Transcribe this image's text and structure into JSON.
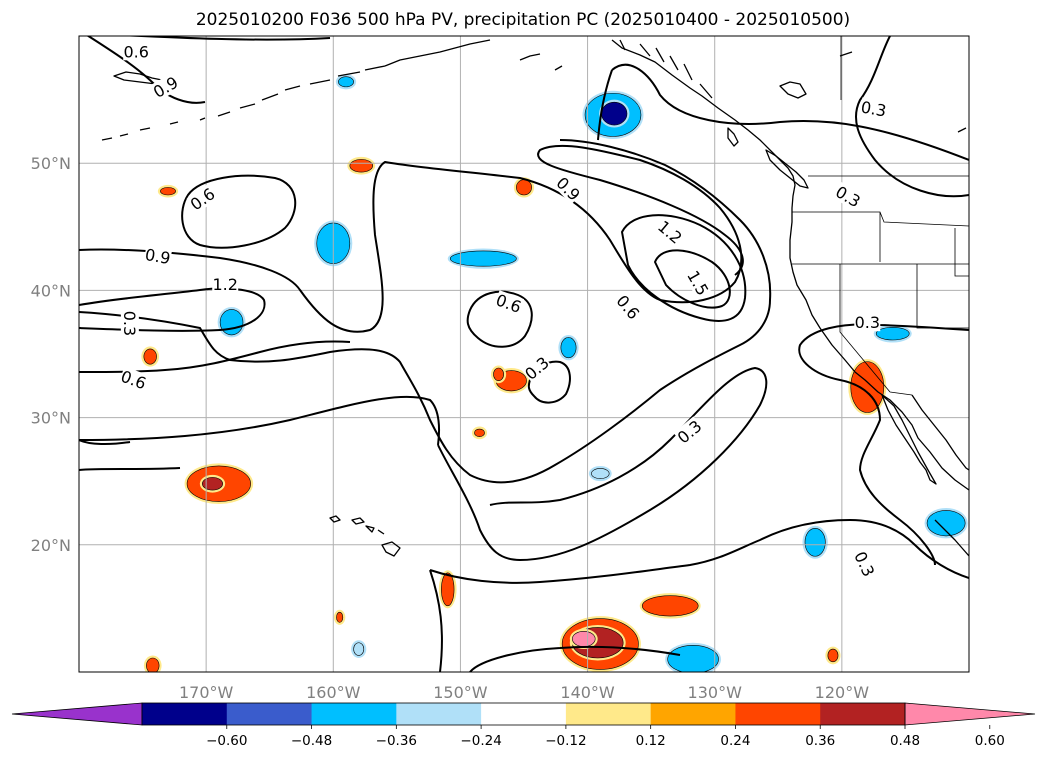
{
  "title": "2025010200 F036 500 hPa PV, precipitation PC (2025010400 - 2025010500)",
  "map": {
    "lon_range": [
      -180,
      -110
    ],
    "lat_range": [
      10,
      60
    ],
    "lon_ticks": [
      {
        "value": -170,
        "label": "170°W"
      },
      {
        "value": -160,
        "label": "160°W"
      },
      {
        "value": -150,
        "label": "150°W"
      },
      {
        "value": -140,
        "label": "140°W"
      },
      {
        "value": -130,
        "label": "130°W"
      },
      {
        "value": -120,
        "label": "120°W"
      }
    ],
    "lat_ticks": [
      {
        "value": 20,
        "label": "20°N"
      },
      {
        "value": 30,
        "label": "30°N"
      },
      {
        "value": 40,
        "label": "40°N"
      },
      {
        "value": 50,
        "label": "50°N"
      }
    ],
    "grid": true
  },
  "contour_labels": [
    {
      "text": "0.6",
      "lon": -175.5,
      "lat": 58.8,
      "rot": 0
    },
    {
      "text": "0.9",
      "lon": -173.2,
      "lat": 56.0,
      "rot": -30
    },
    {
      "text": "0.3",
      "lon": -117.5,
      "lat": 54.3,
      "rot": 10
    },
    {
      "text": "0.6",
      "lon": -170.3,
      "lat": 47.2,
      "rot": -35
    },
    {
      "text": "0.9",
      "lon": -141.5,
      "lat": 48.0,
      "rot": 45
    },
    {
      "text": "0.3",
      "lon": -119.5,
      "lat": 47.4,
      "rot": 30
    },
    {
      "text": "1.2",
      "lon": -133.5,
      "lat": 44.6,
      "rot": 40
    },
    {
      "text": "0.9",
      "lon": -173.8,
      "lat": 42.7,
      "rot": 10
    },
    {
      "text": "1.2",
      "lon": -168.5,
      "lat": 40.5,
      "rot": 0
    },
    {
      "text": "1.5",
      "lon": -131.3,
      "lat": 40.6,
      "rot": 60
    },
    {
      "text": "0.6",
      "lon": -146.2,
      "lat": 39.0,
      "rot": 20
    },
    {
      "text": "0.6",
      "lon": -136.8,
      "lat": 38.7,
      "rot": 50
    },
    {
      "text": "0.3",
      "lon": -176.0,
      "lat": 37.4,
      "rot": 90
    },
    {
      "text": "0.3",
      "lon": -118.0,
      "lat": 37.5,
      "rot": 0
    },
    {
      "text": "0.3",
      "lon": -144.0,
      "lat": 33.9,
      "rot": -40
    },
    {
      "text": "0.6",
      "lon": -175.7,
      "lat": 33.0,
      "rot": 20
    },
    {
      "text": "0.3",
      "lon": -132.0,
      "lat": 28.9,
      "rot": -40
    },
    {
      "text": "0.3",
      "lon": -118.2,
      "lat": 18.5,
      "rot": 65
    }
  ],
  "colorbar": {
    "levels": [
      -0.6,
      -0.48,
      -0.36,
      -0.24,
      -0.12,
      0.12,
      0.24,
      0.36,
      0.48,
      0.6
    ],
    "tick_labels": [
      "−0.60",
      "−0.48",
      "−0.36",
      "−0.24",
      "−0.12",
      "0.12",
      "0.24",
      "0.36",
      "0.48",
      "0.60"
    ],
    "colors": [
      "#9932cc",
      "#00008b",
      "#3a5ccc",
      "#00bfff",
      "#b0e0f8",
      "#ffffff",
      "#ffe98a",
      "#ffa500",
      "#ff4500",
      "#b22222",
      "#ff88aa"
    ],
    "extend": "both"
  },
  "precip_blobs": [
    {
      "lon": -168.0,
      "lat": 37.5,
      "rx": 0.9,
      "ry": 1.0,
      "level": -0.36
    },
    {
      "lon": -160.0,
      "lat": 43.7,
      "rx": 1.3,
      "ry": 1.6,
      "level": -0.36
    },
    {
      "lon": -138.0,
      "lat": 53.8,
      "rx": 2.2,
      "ry": 1.7,
      "level": -0.36
    },
    {
      "lon": -137.9,
      "lat": 53.9,
      "rx": 1.0,
      "ry": 0.9,
      "level": -0.6
    },
    {
      "lon": -159.0,
      "lat": 56.4,
      "rx": 0.6,
      "ry": 0.4,
      "level": -0.36
    },
    {
      "lon": -148.2,
      "lat": 42.5,
      "rx": 2.6,
      "ry": 0.6,
      "level": -0.36
    },
    {
      "lon": -141.5,
      "lat": 35.5,
      "rx": 0.6,
      "ry": 0.8,
      "level": -0.36
    },
    {
      "lon": -139.0,
      "lat": 25.6,
      "rx": 0.7,
      "ry": 0.4,
      "level": -0.24
    },
    {
      "lon": -116.0,
      "lat": 36.6,
      "rx": 1.3,
      "ry": 0.5,
      "level": -0.36
    },
    {
      "lon": -122.1,
      "lat": 20.2,
      "rx": 0.8,
      "ry": 1.1,
      "level": -0.36
    },
    {
      "lon": -111.8,
      "lat": 21.7,
      "rx": 1.5,
      "ry": 1.0,
      "level": -0.36
    },
    {
      "lon": -131.7,
      "lat": 11.0,
      "rx": 2.0,
      "ry": 1.1,
      "level": -0.36
    },
    {
      "lon": -158.0,
      "lat": 11.8,
      "rx": 0.4,
      "ry": 0.5,
      "level": -0.24
    },
    {
      "lon": -145.0,
      "lat": 48.1,
      "rx": 0.6,
      "ry": 0.6,
      "level": 0.36
    },
    {
      "lon": -173.0,
      "lat": 47.8,
      "rx": 0.6,
      "ry": 0.3,
      "level": 0.36
    },
    {
      "lon": -174.4,
      "lat": 34.8,
      "rx": 0.5,
      "ry": 0.6,
      "level": 0.36
    },
    {
      "lon": -157.8,
      "lat": 49.8,
      "rx": 0.9,
      "ry": 0.5,
      "level": 0.36
    },
    {
      "lon": -169.0,
      "lat": 24.8,
      "rx": 2.5,
      "ry": 1.4,
      "level": 0.36
    },
    {
      "lon": -169.5,
      "lat": 24.8,
      "rx": 0.8,
      "ry": 0.5,
      "level": 0.48
    },
    {
      "lon": -146.0,
      "lat": 32.9,
      "rx": 1.2,
      "ry": 0.8,
      "level": 0.36
    },
    {
      "lon": -147.0,
      "lat": 33.4,
      "rx": 0.4,
      "ry": 0.5,
      "level": 0.36
    },
    {
      "lon": -148.5,
      "lat": 28.8,
      "rx": 0.4,
      "ry": 0.3,
      "level": 0.36
    },
    {
      "lon": -118.0,
      "lat": 32.4,
      "rx": 1.3,
      "ry": 2.0,
      "level": 0.36
    },
    {
      "lon": -151.0,
      "lat": 16.5,
      "rx": 0.5,
      "ry": 1.3,
      "level": 0.36
    },
    {
      "lon": -159.5,
      "lat": 14.3,
      "rx": 0.25,
      "ry": 0.4,
      "level": 0.36
    },
    {
      "lon": -174.2,
      "lat": 10.5,
      "rx": 0.5,
      "ry": 0.6,
      "level": 0.36
    },
    {
      "lon": -120.7,
      "lat": 11.3,
      "rx": 0.4,
      "ry": 0.5,
      "level": 0.36
    },
    {
      "lon": -139.0,
      "lat": 12.2,
      "rx": 3.0,
      "ry": 2.0,
      "level": 0.36
    },
    {
      "lon": -133.5,
      "lat": 15.2,
      "rx": 2.2,
      "ry": 0.8,
      "level": 0.36
    },
    {
      "lon": -139.2,
      "lat": 12.3,
      "rx": 2.0,
      "ry": 1.2,
      "level": 0.48
    },
    {
      "lon": -140.3,
      "lat": 12.6,
      "rx": 0.9,
      "ry": 0.6,
      "level": 0.6
    }
  ]
}
